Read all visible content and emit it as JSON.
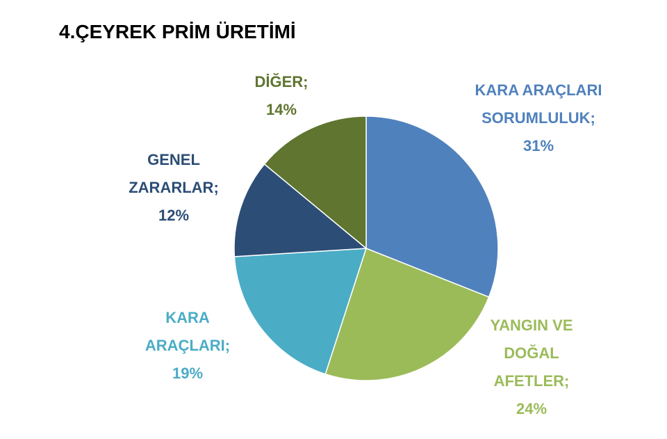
{
  "chart_data": {
    "type": "pie",
    "title": "4.ÇEYREK PRİM ÜRETİMİ",
    "categories": [
      "KARA ARAÇLARI SORUMLULUK;",
      "YANGIN VE DOĞAL AFETLER;",
      "KARA ARAÇLARI;",
      "GENEL ZARARLAR;",
      "DİĞER;"
    ],
    "values": [
      31,
      24,
      19,
      12,
      14
    ],
    "value_labels": [
      "31%",
      "24%",
      "19%",
      "12%",
      "14%"
    ],
    "colors": [
      "#4f81bd",
      "#9bbb59",
      "#4bacc6",
      "#2c4d75",
      "#5f7530"
    ]
  }
}
